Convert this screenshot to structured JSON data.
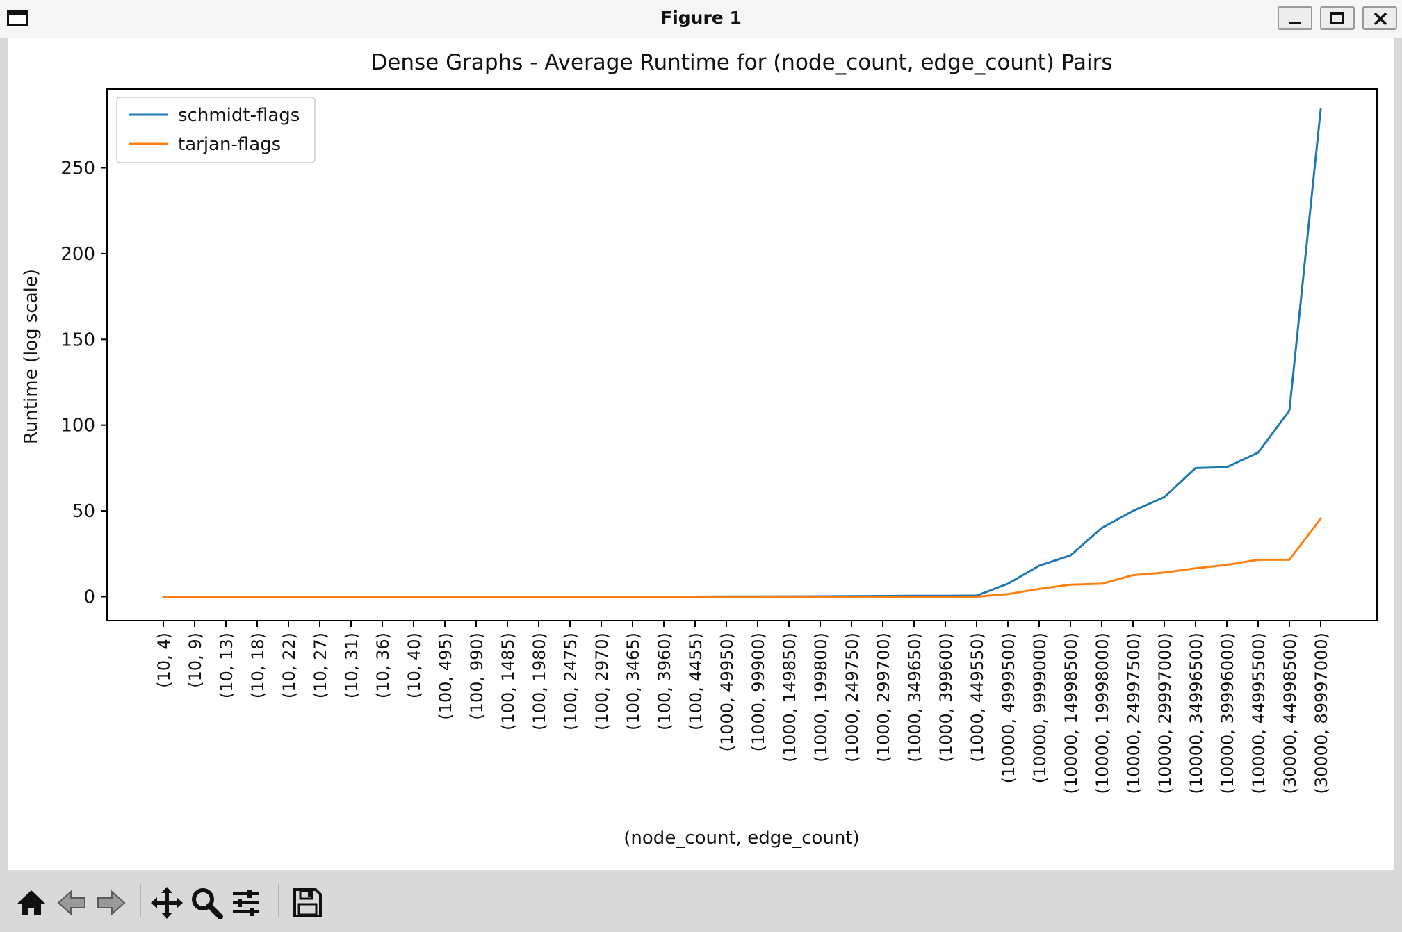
{
  "window": {
    "title": "Figure 1",
    "controls": [
      "minimize",
      "maximize",
      "close"
    ]
  },
  "toolbar": {
    "tools": [
      "home-icon",
      "back-arrow-icon",
      "forward-arrow-icon",
      "pan-move-icon",
      "zoom-magnifier-icon",
      "configure-subplots-icon",
      "save-floppy-icon"
    ]
  },
  "chart_data": {
    "type": "line",
    "title": "Dense Graphs - Average Runtime for (node_count, edge_count) Pairs",
    "xlabel": "(node_count, edge_count)",
    "ylabel": "Runtime (log scale)",
    "ylim": [
      -14,
      296
    ],
    "yticks": [
      0,
      50,
      100,
      150,
      200,
      250
    ],
    "grid": false,
    "legend_position": "top-left",
    "categories": [
      "(10, 4)",
      "(10, 9)",
      "(10, 13)",
      "(10, 18)",
      "(10, 22)",
      "(10, 27)",
      "(10, 31)",
      "(10, 36)",
      "(10, 40)",
      "(100, 495)",
      "(100, 990)",
      "(100, 1485)",
      "(100, 1980)",
      "(100, 2475)",
      "(100, 2970)",
      "(100, 3465)",
      "(100, 3960)",
      "(100, 4455)",
      "(1000, 49950)",
      "(1000, 99900)",
      "(1000, 149850)",
      "(1000, 199800)",
      "(1000, 249750)",
      "(1000, 299700)",
      "(1000, 349650)",
      "(1000, 399600)",
      "(1000, 449550)",
      "(10000, 4999500)",
      "(10000, 9999000)",
      "(10000, 14998500)",
      "(10000, 19998000)",
      "(10000, 24997500)",
      "(10000, 29997000)",
      "(10000, 34996500)",
      "(10000, 39996000)",
      "(10000, 44995500)",
      "(30000, 44998500)",
      "(30000, 89997000)"
    ],
    "series": [
      {
        "name": "schmidt-flags",
        "color": "#1f77b4",
        "values": [
          0,
          0,
          0,
          0,
          0,
          0,
          0,
          0,
          0,
          0,
          0,
          0,
          0,
          0,
          0,
          0,
          0,
          0,
          0.05,
          0.1,
          0.15,
          0.2,
          0.3,
          0.4,
          0.45,
          0.5,
          0.6,
          7.5,
          18,
          24,
          40,
          50,
          58,
          75,
          75.5,
          84,
          108.5,
          284
        ]
      },
      {
        "name": "tarjan-flags",
        "color": "#ff7f0e",
        "values": [
          0,
          0,
          0,
          0,
          0,
          0,
          0,
          0,
          0,
          0,
          0,
          0,
          0,
          0,
          0,
          0,
          0,
          0,
          0,
          0,
          0,
          0,
          0,
          0,
          0,
          0,
          0,
          1.5,
          4.5,
          7,
          7.5,
          12.5,
          14,
          16.5,
          18.5,
          21.5,
          21.5,
          45.5
        ]
      }
    ]
  }
}
